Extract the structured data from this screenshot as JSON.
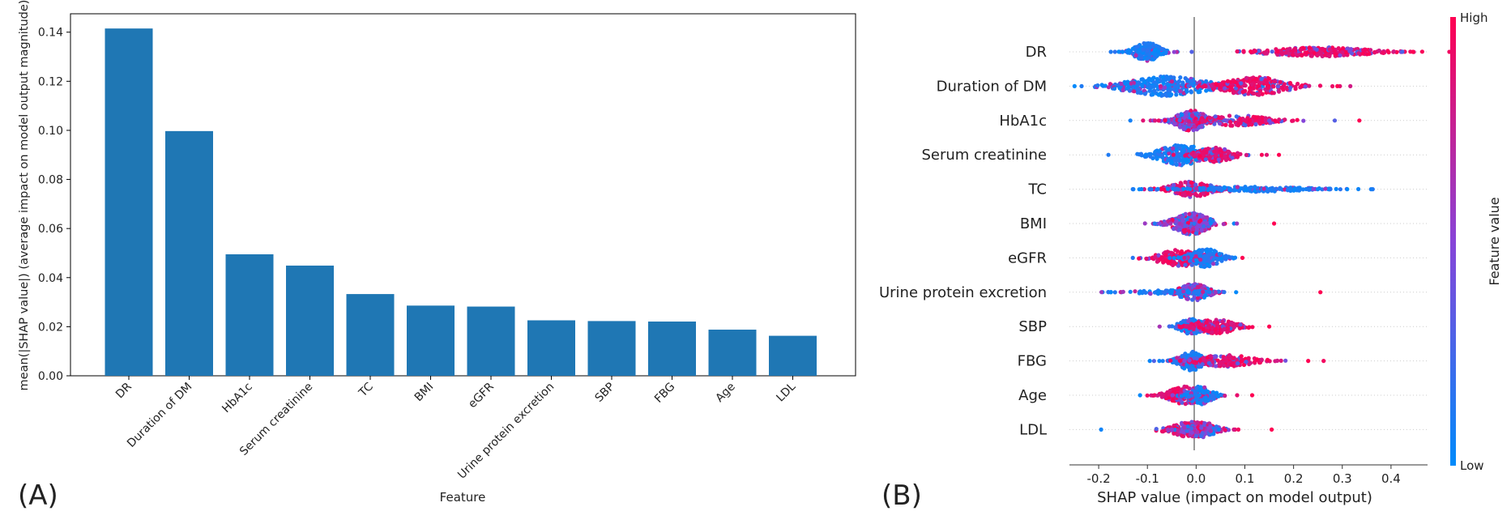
{
  "panel_labels": {
    "a": "(A)",
    "b": "(B)"
  },
  "chart_data": [
    {
      "type": "bar",
      "panel": "(A)",
      "xlabel": "Feature",
      "ylabel": "mean(|SHAP value|) (average impact on model output magnitude)",
      "categories": [
        "DR",
        "Duration of DM",
        "HbA1c",
        "Serum creatinine",
        "TC",
        "BMI",
        "eGFR",
        "Urine protein excretion",
        "SBP",
        "FBG",
        "Age",
        "LDL"
      ],
      "values": [
        0.1415,
        0.0997,
        0.0495,
        0.0449,
        0.0333,
        0.0286,
        0.0282,
        0.0226,
        0.0223,
        0.0221,
        0.0188,
        0.0163
      ],
      "yticks": [
        "0.00",
        "0.02",
        "0.04",
        "0.06",
        "0.08",
        "0.10",
        "0.12",
        "0.14"
      ],
      "ylim": [
        0,
        0.1475
      ],
      "bar_color": "#1f77b4",
      "grid": false
    },
    {
      "type": "scatter",
      "subtype": "beeswarm",
      "panel": "(B)",
      "xlabel": "SHAP value (impact on model output)",
      "xticks": [
        "-0.2",
        "-0.1",
        "0.0",
        "0.1",
        "0.2",
        "0.3",
        "0.4"
      ],
      "xlim": [
        -0.26,
        0.475
      ],
      "features": [
        "DR",
        "Duration of DM",
        "HbA1c",
        "Serum creatinine",
        "TC",
        "BMI",
        "eGFR",
        "Urine protein excretion",
        "SBP",
        "FBG",
        "Age",
        "LDL"
      ],
      "colorbar": {
        "label": "Feature value",
        "high": "High",
        "low": "Low",
        "high_color": "#ff0052",
        "low_color": "#008bfb"
      },
      "series": [
        {
          "feature": "DR",
          "clusters": [
            {
              "center": -0.1,
              "spread": 0.022,
              "width": 0.7,
              "color": "low",
              "count": 220
            },
            {
              "center": 0.25,
              "spread": 0.085,
              "width": 0.35,
              "color": "high",
              "count": 260
            }
          ],
          "extremes": [
            -0.175,
            0.445
          ]
        },
        {
          "feature": "Duration of DM",
          "clusters": [
            {
              "center": -0.06,
              "spread": 0.07,
              "width": 0.75,
              "color": "low",
              "count": 300
            },
            {
              "center": 0.12,
              "spread": 0.055,
              "width": 0.7,
              "color": "high",
              "count": 240
            }
          ],
          "extremes": [
            -0.235,
            0.29
          ]
        },
        {
          "feature": "HbA1c",
          "clusters": [
            {
              "center": -0.01,
              "spread": 0.025,
              "width": 0.8,
              "color": "mix",
              "count": 240
            },
            {
              "center": 0.08,
              "spread": 0.06,
              "width": 0.4,
              "color": "high",
              "count": 140
            }
          ],
          "extremes": [
            -0.135,
            0.335
          ]
        },
        {
          "feature": "Serum creatinine",
          "clusters": [
            {
              "center": -0.03,
              "spread": 0.04,
              "width": 0.8,
              "color": "low",
              "count": 240
            },
            {
              "center": 0.04,
              "spread": 0.03,
              "width": 0.55,
              "color": "high",
              "count": 150
            }
          ],
          "extremes": [
            -0.18,
            0.17
          ]
        },
        {
          "feature": "TC",
          "clusters": [
            {
              "center": -0.01,
              "spread": 0.035,
              "width": 0.6,
              "color": "high",
              "count": 160
            },
            {
              "center": 0.12,
              "spread": 0.09,
              "width": 0.2,
              "color": "low",
              "count": 180
            }
          ],
          "extremes": [
            -0.13,
            0.31
          ]
        },
        {
          "feature": "BMI",
          "clusters": [
            {
              "center": -0.01,
              "spread": 0.03,
              "width": 0.85,
              "color": "mix",
              "count": 300
            }
          ],
          "extremes": [
            -0.085,
            0.16
          ]
        },
        {
          "feature": "eGFR",
          "clusters": [
            {
              "center": -0.03,
              "spread": 0.04,
              "width": 0.65,
              "color": "high",
              "count": 200
            },
            {
              "center": 0.02,
              "spread": 0.025,
              "width": 0.7,
              "color": "low",
              "count": 150
            }
          ],
          "extremes": [
            -0.13,
            0.095
          ]
        },
        {
          "feature": "Urine protein excretion",
          "clusters": [
            {
              "center": -0.005,
              "spread": 0.025,
              "width": 0.65,
              "color": "mix",
              "count": 150
            },
            {
              "center": -0.05,
              "spread": 0.06,
              "width": 0.15,
              "color": "low",
              "count": 90
            }
          ],
          "extremes": [
            -0.175,
            0.255
          ]
        },
        {
          "feature": "SBP",
          "clusters": [
            {
              "center": -0.01,
              "spread": 0.02,
              "width": 0.6,
              "color": "low",
              "count": 150
            },
            {
              "center": 0.04,
              "spread": 0.035,
              "width": 0.55,
              "color": "high",
              "count": 170
            }
          ],
          "extremes": [
            -0.075,
            0.15
          ]
        },
        {
          "feature": "FBG",
          "clusters": [
            {
              "center": -0.01,
              "spread": 0.02,
              "width": 0.75,
              "color": "low",
              "count": 180
            },
            {
              "center": 0.06,
              "spread": 0.05,
              "width": 0.45,
              "color": "high",
              "count": 160
            }
          ],
          "extremes": [
            -0.095,
            0.23
          ]
        },
        {
          "feature": "Age",
          "clusters": [
            {
              "center": -0.02,
              "spread": 0.03,
              "width": 0.7,
              "color": "high",
              "count": 170
            },
            {
              "center": 0.01,
              "spread": 0.02,
              "width": 0.7,
              "color": "low",
              "count": 150
            }
          ],
          "extremes": [
            -0.115,
            0.115
          ]
        },
        {
          "feature": "LDL",
          "clusters": [
            {
              "center": -0.01,
              "spread": 0.035,
              "width": 0.6,
              "color": "high",
              "count": 160
            },
            {
              "center": 0.01,
              "spread": 0.025,
              "width": 0.6,
              "color": "mix",
              "count": 140
            }
          ],
          "extremes": [
            -0.195,
            0.155
          ]
        }
      ]
    }
  ]
}
